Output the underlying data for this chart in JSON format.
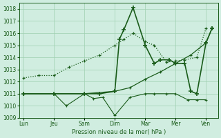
{
  "background_color": "#d0ede0",
  "grid_color": "#9fcfb0",
  "line_color": "#1a5c1a",
  "xlabel": "Pression niveau de la mer( hPa )",
  "ylim": [
    1009,
    1018.5
  ],
  "yticks": [
    1009,
    1010,
    1011,
    1012,
    1013,
    1014,
    1015,
    1016,
    1017,
    1018
  ],
  "x_labels": [
    "Lun",
    "Jeu",
    "Sam",
    "Dim",
    "Mar",
    "Mer",
    "Ven"
  ],
  "x_positions": [
    0,
    1,
    2,
    3,
    4,
    5,
    6
  ],
  "xlim": [
    -0.15,
    6.4
  ],
  "series": [
    {
      "x": [
        0,
        0.5,
        1,
        1.5,
        2,
        2.5,
        3,
        3.3,
        3.6,
        4,
        4.3,
        4.7,
        5,
        5.3,
        5.7,
        6
      ],
      "y": [
        1012.3,
        1012.5,
        1012.5,
        1013.2,
        1013.7,
        1014.2,
        1015.0,
        1015.5,
        1016.0,
        1015.3,
        1015.0,
        1013.6,
        1013.7,
        1013.8,
        1014.0,
        1016.4
      ],
      "linestyle": "dotted",
      "linewidth": 0.9,
      "markersize": 3.5
    },
    {
      "x": [
        0,
        1,
        2,
        2.5,
        3.0,
        3.15,
        3.3,
        3.6,
        4,
        4.3,
        4.5,
        4.8,
        5.0,
        5.3,
        5.5,
        5.7,
        6,
        6.2
      ],
      "y": [
        1011.0,
        1011.0,
        1011.0,
        1011.0,
        1011.2,
        1015.5,
        1016.3,
        1018.1,
        1015.0,
        1013.5,
        1013.8,
        1013.8,
        1013.5,
        1013.5,
        1011.2,
        1011.0,
        1015.2,
        1016.4
      ],
      "linestyle": "solid",
      "linewidth": 1.2,
      "markersize": 4
    },
    {
      "x": [
        0,
        1,
        1.4,
        2,
        2.3,
        2.6,
        3,
        3.5,
        4,
        4.3,
        4.7,
        5,
        5.4,
        5.7,
        6
      ],
      "y": [
        1011.0,
        1011.0,
        1010.0,
        1011.0,
        1010.6,
        1010.7,
        1009.2,
        1010.7,
        1011.0,
        1011.0,
        1011.0,
        1011.0,
        1010.5,
        1010.5,
        1010.5
      ],
      "linestyle": "solid",
      "linewidth": 0.8,
      "markersize": 3
    },
    {
      "x": [
        0,
        1,
        2,
        3,
        3.5,
        4,
        4.5,
        5,
        5.5,
        6,
        6.2
      ],
      "y": [
        1011.0,
        1011.0,
        1011.0,
        1011.2,
        1011.5,
        1012.2,
        1012.8,
        1013.5,
        1014.2,
        1015.2,
        1016.4
      ],
      "linestyle": "solid",
      "linewidth": 0.9,
      "markersize": 3
    }
  ]
}
